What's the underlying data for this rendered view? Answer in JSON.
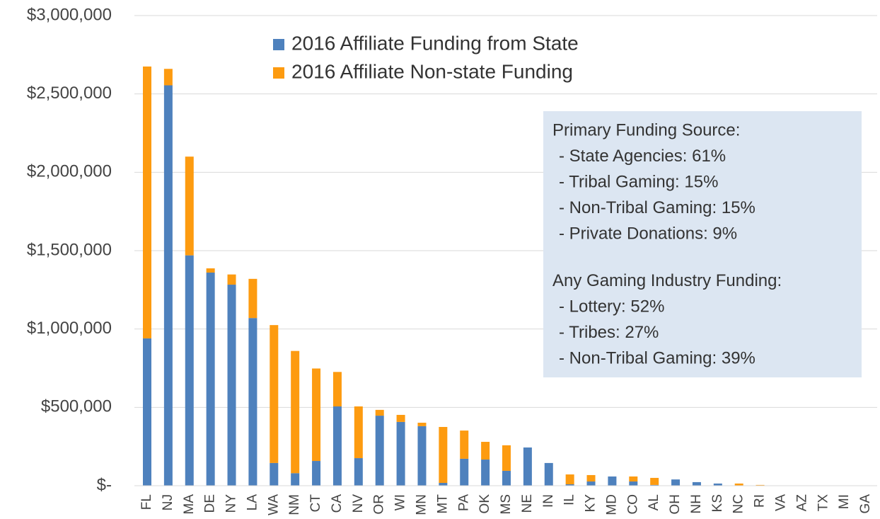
{
  "chart_data": {
    "type": "stacked_bar",
    "categories": [
      "FL",
      "NJ",
      "MA",
      "DE",
      "NY",
      "LA",
      "WA",
      "NM",
      "CT",
      "CA",
      "NV",
      "OR",
      "WI",
      "MN",
      "MT",
      "PA",
      "OK",
      "MS",
      "NE",
      "IN",
      "IL",
      "KY",
      "MD",
      "CO",
      "AL",
      "OH",
      "NH",
      "KS",
      "NC",
      "RI",
      "VA",
      "AZ",
      "TX",
      "MI",
      "GA"
    ],
    "series": [
      {
        "name": "2016 Affiliate Funding from State",
        "color": "#4e81bd",
        "values": [
          940000,
          2555000,
          1470000,
          1360000,
          1283000,
          1070000,
          145000,
          80000,
          158000,
          506000,
          176000,
          447000,
          407000,
          380000,
          18000,
          172000,
          167000,
          95000,
          244000,
          145000,
          9000,
          27000,
          59000,
          27000,
          5000,
          40000,
          23000,
          14000,
          0,
          0,
          0,
          0,
          0,
          0,
          0
        ]
      },
      {
        "name": "2016 Affiliate Non-state Funding",
        "color": "#fd9b10",
        "values": [
          1735000,
          105000,
          630000,
          27000,
          65000,
          250000,
          880000,
          780000,
          590000,
          220000,
          330000,
          37000,
          45000,
          22000,
          357000,
          180000,
          113000,
          163000,
          0,
          0,
          63000,
          41000,
          0,
          32000,
          45000,
          0,
          0,
          0,
          14000,
          5000,
          0,
          0,
          0,
          0,
          0
        ]
      }
    ],
    "ylim": [
      0,
      3000000
    ],
    "yticks": [
      {
        "value": 0,
        "label": "$-"
      },
      {
        "value": 500000,
        "label": "$500,000"
      },
      {
        "value": 1000000,
        "label": "$1,000,000"
      },
      {
        "value": 1500000,
        "label": "$1,500,000"
      },
      {
        "value": 2000000,
        "label": "$2,000,000"
      },
      {
        "value": 2500000,
        "label": "$2,500,000"
      },
      {
        "value": 3000000,
        "label": "$3,000,000"
      }
    ],
    "grid": true,
    "legend": "top",
    "annotation": [
      {
        "heading": "Primary Funding Source:",
        "items": [
          "- State Agencies: 61%",
          "- Tribal Gaming: 15%",
          "- Non-Tribal Gaming: 15%",
          "- Private Donations: 9%"
        ]
      },
      {
        "heading": "Any Gaming Industry Funding:",
        "items": [
          "- Lottery:  52%",
          "- Tribes:  27%",
          "- Non-Tribal Gaming:  39%"
        ]
      }
    ]
  }
}
